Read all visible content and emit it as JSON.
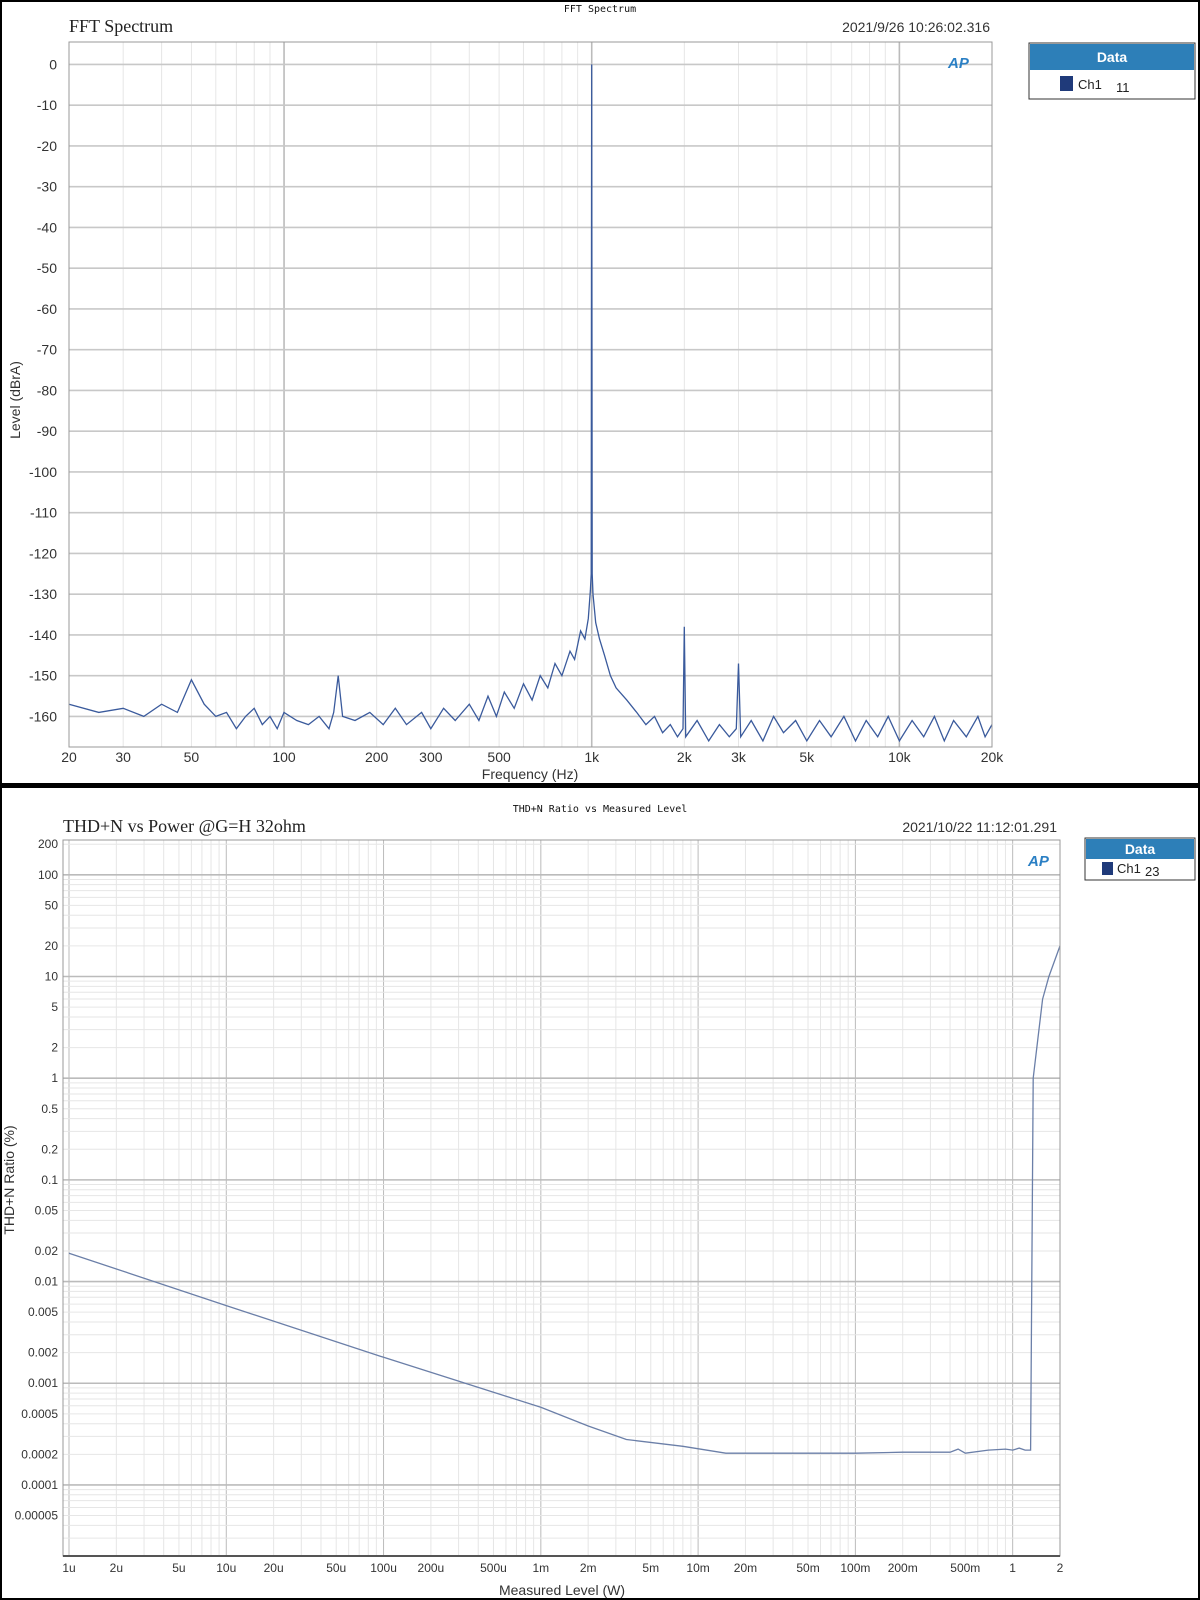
{
  "colors": {
    "trace": "#3a5a9c",
    "legend_header": "#2d7fb8",
    "legend_swatch": "#1f3a7a",
    "grid_major": "#c8c8c8",
    "grid_minor": "#e6e6e6",
    "logo": "#2a7fc4"
  },
  "logo": "AP",
  "chart_data": [
    {
      "type": "line",
      "window_title": "FFT Spectrum",
      "title": "FFT Spectrum",
      "timestamp": "2021/9/26 10:26:02.316",
      "xlabel": "Frequency (Hz)",
      "ylabel": "Level (dBrA)",
      "xscale": "log",
      "xlim": [
        20,
        20000
      ],
      "ylim": [
        -167.5,
        5.5
      ],
      "grid": true,
      "legend": {
        "header": "Data",
        "placement": "right-outside",
        "entries": [
          {
            "name": "Ch1",
            "value": "11"
          }
        ]
      },
      "xticks": [
        {
          "v": 20,
          "l": "20"
        },
        {
          "v": 30,
          "l": "30"
        },
        {
          "v": 50,
          "l": "50"
        },
        {
          "v": 100,
          "l": "100"
        },
        {
          "v": 200,
          "l": "200"
        },
        {
          "v": 300,
          "l": "300"
        },
        {
          "v": 500,
          "l": "500"
        },
        {
          "v": 1000,
          "l": "1k"
        },
        {
          "v": 2000,
          "l": "2k"
        },
        {
          "v": 3000,
          "l": "3k"
        },
        {
          "v": 5000,
          "l": "5k"
        },
        {
          "v": 10000,
          "l": "10k"
        },
        {
          "v": 20000,
          "l": "20k"
        }
      ],
      "yticks": [
        0,
        -10,
        -20,
        -30,
        -40,
        -50,
        -60,
        -70,
        -80,
        -90,
        -100,
        -110,
        -120,
        -130,
        -140,
        -150,
        -160
      ],
      "series": [
        {
          "name": "Ch1",
          "points": [
            [
              20,
              -157
            ],
            [
              25,
              -159
            ],
            [
              30,
              -158
            ],
            [
              35,
              -160
            ],
            [
              40,
              -157
            ],
            [
              45,
              -159
            ],
            [
              50,
              -151
            ],
            [
              55,
              -157
            ],
            [
              60,
              -160
            ],
            [
              65,
              -159
            ],
            [
              70,
              -163
            ],
            [
              75,
              -160
            ],
            [
              80,
              -158
            ],
            [
              85,
              -162
            ],
            [
              90,
              -160
            ],
            [
              95,
              -163
            ],
            [
              100,
              -159
            ],
            [
              110,
              -161
            ],
            [
              120,
              -162
            ],
            [
              130,
              -160
            ],
            [
              140,
              -163
            ],
            [
              145,
              -159
            ],
            [
              150,
              -150
            ],
            [
              155,
              -160
            ],
            [
              170,
              -161
            ],
            [
              190,
              -159
            ],
            [
              210,
              -162
            ],
            [
              230,
              -158
            ],
            [
              250,
              -162
            ],
            [
              280,
              -159
            ],
            [
              300,
              -163
            ],
            [
              330,
              -158
            ],
            [
              360,
              -161
            ],
            [
              400,
              -157
            ],
            [
              430,
              -161
            ],
            [
              460,
              -155
            ],
            [
              490,
              -160
            ],
            [
              520,
              -154
            ],
            [
              560,
              -158
            ],
            [
              600,
              -152
            ],
            [
              640,
              -156
            ],
            [
              680,
              -150
            ],
            [
              720,
              -153
            ],
            [
              760,
              -147
            ],
            [
              800,
              -150
            ],
            [
              850,
              -144
            ],
            [
              880,
              -146
            ],
            [
              920,
              -139
            ],
            [
              950,
              -141
            ],
            [
              975,
              -136
            ],
            [
              990,
              -129
            ],
            [
              996,
              -125
            ],
            [
              1000,
              0
            ],
            [
              1004,
              -125
            ],
            [
              1010,
              -130
            ],
            [
              1030,
              -137
            ],
            [
              1060,
              -141
            ],
            [
              1100,
              -145
            ],
            [
              1150,
              -150
            ],
            [
              1200,
              -153
            ],
            [
              1300,
              -156
            ],
            [
              1400,
              -159
            ],
            [
              1500,
              -162
            ],
            [
              1600,
              -160
            ],
            [
              1700,
              -164
            ],
            [
              1800,
              -162
            ],
            [
              1900,
              -165
            ],
            [
              1980,
              -163
            ],
            [
              2000,
              -138
            ],
            [
              2020,
              -165
            ],
            [
              2200,
              -161
            ],
            [
              2400,
              -166
            ],
            [
              2600,
              -162
            ],
            [
              2800,
              -165
            ],
            [
              2950,
              -163
            ],
            [
              3000,
              -147
            ],
            [
              3050,
              -165
            ],
            [
              3300,
              -161
            ],
            [
              3600,
              -166
            ],
            [
              3900,
              -160
            ],
            [
              4200,
              -164
            ],
            [
              4600,
              -161
            ],
            [
              5000,
              -166
            ],
            [
              5500,
              -161
            ],
            [
              6000,
              -165
            ],
            [
              6600,
              -160
            ],
            [
              7200,
              -166
            ],
            [
              7800,
              -161
            ],
            [
              8500,
              -165
            ],
            [
              9200,
              -160
            ],
            [
              10000,
              -166
            ],
            [
              11000,
              -161
            ],
            [
              12000,
              -165
            ],
            [
              13000,
              -160
            ],
            [
              14000,
              -166
            ],
            [
              15000,
              -161
            ],
            [
              16500,
              -165
            ],
            [
              18000,
              -160
            ],
            [
              19000,
              -165
            ],
            [
              20000,
              -162
            ]
          ]
        }
      ]
    },
    {
      "type": "line",
      "window_title": "THD+N Ratio vs Measured Level",
      "title": "THD+N vs Power @G=H 32ohm",
      "timestamp": "2021/10/22 11:12:01.291",
      "xlabel": "Measured Level (W)",
      "ylabel": "THD+N Ratio (%)",
      "xscale": "log",
      "yscale": "log",
      "xlim": [
        1e-06,
        2
      ],
      "ylim": [
        2e-05,
        220
      ],
      "grid": true,
      "legend": {
        "header": "Data",
        "placement": "right-outside",
        "entries": [
          {
            "name": "Ch1",
            "value": "23"
          }
        ]
      },
      "xticks": [
        {
          "v": 1e-06,
          "l": "1u"
        },
        {
          "v": 2e-06,
          "l": "2u"
        },
        {
          "v": 5e-06,
          "l": "5u"
        },
        {
          "v": 1e-05,
          "l": "10u"
        },
        {
          "v": 2e-05,
          "l": "20u"
        },
        {
          "v": 5e-05,
          "l": "50u"
        },
        {
          "v": 0.0001,
          "l": "100u"
        },
        {
          "v": 0.0002,
          "l": "200u"
        },
        {
          "v": 0.0005,
          "l": "500u"
        },
        {
          "v": 0.001,
          "l": "1m"
        },
        {
          "v": 0.002,
          "l": "2m"
        },
        {
          "v": 0.005,
          "l": "5m"
        },
        {
          "v": 0.01,
          "l": "10m"
        },
        {
          "v": 0.02,
          "l": "20m"
        },
        {
          "v": 0.05,
          "l": "50m"
        },
        {
          "v": 0.1,
          "l": "100m"
        },
        {
          "v": 0.2,
          "l": "200m"
        },
        {
          "v": 0.5,
          "l": "500m"
        },
        {
          "v": 1,
          "l": "1"
        },
        {
          "v": 2,
          "l": "2"
        }
      ],
      "yticks": [
        {
          "v": 200,
          "l": "200"
        },
        {
          "v": 100,
          "l": "100"
        },
        {
          "v": 50,
          "l": "50"
        },
        {
          "v": 20,
          "l": "20"
        },
        {
          "v": 10,
          "l": "10"
        },
        {
          "v": 5,
          "l": "5"
        },
        {
          "v": 2,
          "l": "2"
        },
        {
          "v": 1,
          "l": "1"
        },
        {
          "v": 0.5,
          "l": "0.5"
        },
        {
          "v": 0.2,
          "l": "0.2"
        },
        {
          "v": 0.1,
          "l": "0.1"
        },
        {
          "v": 0.05,
          "l": "0.05"
        },
        {
          "v": 0.02,
          "l": "0.02"
        },
        {
          "v": 0.01,
          "l": "0.01"
        },
        {
          "v": 0.005,
          "l": "0.005"
        },
        {
          "v": 0.002,
          "l": "0.002"
        },
        {
          "v": 0.001,
          "l": "0.001"
        },
        {
          "v": 0.0005,
          "l": "0.0005"
        },
        {
          "v": 0.0002,
          "l": "0.0002"
        },
        {
          "v": 0.0001,
          "l": "0.0001"
        },
        {
          "v": 5e-05,
          "l": "0.00005"
        }
      ],
      "series": [
        {
          "name": "Ch1",
          "points": [
            [
              1e-06,
              0.019
            ],
            [
              1e-05,
              0.0058
            ],
            [
              0.0001,
              0.0018
            ],
            [
              0.001,
              0.00058
            ],
            [
              0.002,
              0.00038
            ],
            [
              0.0035,
              0.00028
            ],
            [
              0.008,
              0.00024
            ],
            [
              0.015,
              0.000205
            ],
            [
              0.05,
              0.000205
            ],
            [
              0.1,
              0.000205
            ],
            [
              0.2,
              0.00021
            ],
            [
              0.4,
              0.00021
            ],
            [
              0.45,
              0.000225
            ],
            [
              0.5,
              0.000205
            ],
            [
              0.7,
              0.00022
            ],
            [
              0.9,
              0.000225
            ],
            [
              1.0,
              0.00022
            ],
            [
              1.1,
              0.00023
            ],
            [
              1.2,
              0.00022
            ],
            [
              1.3,
              0.00022
            ],
            [
              1.35,
              1.0
            ],
            [
              1.45,
              2.5
            ],
            [
              1.55,
              6
            ],
            [
              1.7,
              10
            ],
            [
              2.0,
              20
            ]
          ]
        }
      ]
    }
  ]
}
